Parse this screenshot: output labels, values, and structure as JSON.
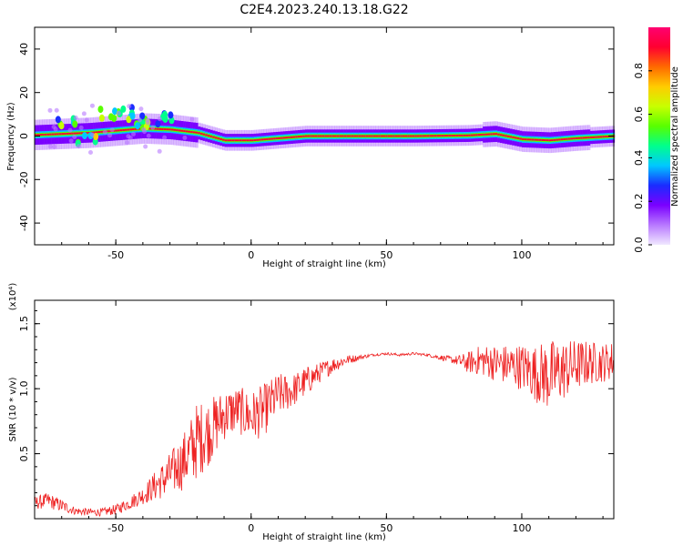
{
  "title": "C2E4.2023.240.13.18.G22",
  "chart_data": [
    {
      "type": "heatmap",
      "xlabel": "Height of straight line (km)",
      "ylabel": "Frequency (Hz)",
      "xlim": [
        -80,
        134
      ],
      "ylim": [
        -50,
        50
      ],
      "xticks": [
        -50,
        0,
        50,
        100
      ],
      "yticks": [
        -40,
        -20,
        0,
        20,
        40
      ],
      "colorbar": {
        "label": "Normalized spectral amplitude",
        "range": [
          0,
          1
        ],
        "ticks": [
          "0.0",
          "0.2",
          "0.4",
          "0.6",
          "0.8"
        ],
        "colors": [
          "#f0e8ff",
          "#b878ff",
          "#7a00ff",
          "#1a2cff",
          "#00c8ff",
          "#00ff8c",
          "#58ff00",
          "#c8ff00",
          "#ffcc00",
          "#ff6a00",
          "#ff0030",
          "#ff0070"
        ]
      },
      "ridge": [
        {
          "x": -80,
          "f": 0.5
        },
        {
          "x": -70,
          "f": 1
        },
        {
          "x": -60,
          "f": 1.5
        },
        {
          "x": -50,
          "f": 2.5
        },
        {
          "x": -40,
          "f": 3.5
        },
        {
          "x": -30,
          "f": 3
        },
        {
          "x": -20,
          "f": 1.5
        },
        {
          "x": -10,
          "f": -2
        },
        {
          "x": 0,
          "f": -2
        },
        {
          "x": 10,
          "f": -1
        },
        {
          "x": 20,
          "f": 0
        },
        {
          "x": 40,
          "f": 0
        },
        {
          "x": 60,
          "f": 0
        },
        {
          "x": 80,
          "f": 0.3
        },
        {
          "x": 90,
          "f": 1
        },
        {
          "x": 100,
          "f": -1.5
        },
        {
          "x": 110,
          "f": -2
        },
        {
          "x": 120,
          "f": -1
        },
        {
          "x": 134,
          "f": 0
        }
      ],
      "scattered_clusters": [
        {
          "x": -53,
          "f": 10
        },
        {
          "x": -47,
          "f": 11
        },
        {
          "x": -43,
          "f": 8
        },
        {
          "x": -38,
          "f": 6
        },
        {
          "x": -33,
          "f": 9
        },
        {
          "x": -68,
          "f": 5
        },
        {
          "x": -60,
          "f": -2
        }
      ]
    },
    {
      "type": "line",
      "xlabel": "Height of straight line (km)",
      "ylabel": "SNR (10 * v/v)",
      "scale_note": "(x10⁴)",
      "xlim": [
        -80,
        134
      ],
      "ylim": [
        0,
        1.68
      ],
      "xticks": [
        -50,
        0,
        50,
        100
      ],
      "yticks": [
        "0.5",
        "1.0",
        "1.5"
      ],
      "color": "#ee2222",
      "x": [
        -80,
        -75,
        -70,
        -65,
        -60,
        -55,
        -50,
        -45,
        -40,
        -35,
        -30,
        -25,
        -20,
        -15,
        -10,
        -5,
        0,
        5,
        10,
        15,
        20,
        25,
        30,
        35,
        40,
        45,
        50,
        55,
        60,
        65,
        70,
        75,
        80,
        85,
        90,
        95,
        100,
        105,
        110,
        115,
        120,
        125,
        130,
        134
      ],
      "y": [
        0.12,
        0.14,
        0.1,
        0.06,
        0.05,
        0.05,
        0.07,
        0.12,
        0.18,
        0.26,
        0.34,
        0.44,
        0.6,
        0.68,
        0.8,
        0.84,
        0.78,
        0.84,
        0.95,
        0.98,
        1.05,
        1.12,
        1.18,
        1.22,
        1.24,
        1.26,
        1.27,
        1.26,
        1.27,
        1.26,
        1.24,
        1.22,
        1.2,
        1.22,
        1.2,
        1.18,
        1.17,
        1.12,
        1.1,
        1.14,
        1.18,
        1.2,
        1.2,
        1.22
      ],
      "noise": [
        0.05,
        0.06,
        0.05,
        0.03,
        0.03,
        0.03,
        0.04,
        0.05,
        0.07,
        0.12,
        0.17,
        0.22,
        0.3,
        0.25,
        0.2,
        0.18,
        0.2,
        0.2,
        0.17,
        0.13,
        0.12,
        0.08,
        0.06,
        0.04,
        0.02,
        0.01,
        0.01,
        0.01,
        0.01,
        0.01,
        0.02,
        0.03,
        0.08,
        0.12,
        0.14,
        0.16,
        0.18,
        0.22,
        0.28,
        0.24,
        0.2,
        0.17,
        0.15,
        0.15
      ]
    }
  ]
}
